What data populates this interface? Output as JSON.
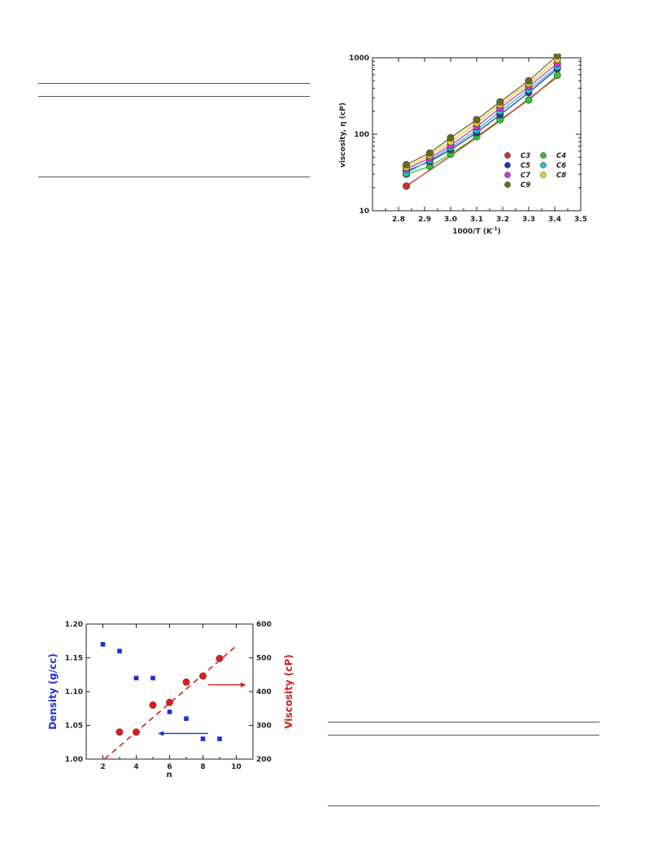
{
  "chart_data": [
    {
      "type": "scatter",
      "title": "",
      "xlabel_main": "1000/T (K",
      "xlabel_sup": "-1",
      "xlabel_end": ")",
      "ylabel": "viscosity, η (cP)",
      "xlim": [
        2.7,
        3.5
      ],
      "ylim": [
        10,
        1000
      ],
      "yscale": "log",
      "xticks": [
        "2.8",
        "2.9",
        "3.0",
        "3.1",
        "3.2",
        "3.3",
        "3.4",
        "3.5"
      ],
      "yticks": [
        "10",
        "100",
        "1000"
      ],
      "legend_position": "lower-right",
      "x": [
        2.83,
        2.92,
        3.0,
        3.1,
        3.19,
        3.3,
        3.41
      ],
      "series": [
        {
          "name": "C3",
          "color": "#d42a2a",
          "values": [
            21,
            null,
            null,
            null,
            null,
            null,
            null
          ]
        },
        {
          "name": "C4",
          "color": "#2ec42e",
          "values": [
            30,
            38,
            55,
            93,
            155,
            280,
            590
          ]
        },
        {
          "name": "C5",
          "color": "#2634b0",
          "values": [
            33,
            44,
            63,
            105,
            180,
            350,
            720
          ]
        },
        {
          "name": "C6",
          "color": "#22c4c4",
          "values": [
            31,
            46,
            67,
            113,
            200,
            380,
            760
          ]
        },
        {
          "name": "C7",
          "color": "#d633d6",
          "values": [
            35,
            49,
            72,
            125,
            220,
            420,
            840
          ]
        },
        {
          "name": "C8",
          "color": "#e6d21e",
          "values": [
            37,
            53,
            80,
            140,
            245,
            460,
            950
          ]
        },
        {
          "name": "C9",
          "color": "#6b6b1e",
          "values": [
            40,
            57,
            90,
            155,
            265,
            500,
            1070
          ]
        }
      ]
    },
    {
      "type": "scatter",
      "title": "",
      "xlabel": "n",
      "ylabel_left": "Density (g/cc)",
      "ylabel_right": "Viscosity (cP)",
      "xlim": [
        1,
        11
      ],
      "ylim_left": [
        1.0,
        1.2
      ],
      "ylim_right": [
        200,
        600
      ],
      "xticks": [
        "2",
        "4",
        "6",
        "8",
        "10"
      ],
      "yticks_left": [
        "1.00",
        "1.05",
        "1.10",
        "1.15",
        "1.20"
      ],
      "yticks_right": [
        "200",
        "300",
        "400",
        "500",
        "600"
      ],
      "density_color": "#1c2fd6",
      "viscosity_color": "#d42020",
      "density": {
        "x": [
          2,
          3,
          4,
          5,
          6,
          7,
          8,
          9
        ],
        "values": [
          1.17,
          1.16,
          1.12,
          1.12,
          1.07,
          1.06,
          1.03,
          1.03
        ]
      },
      "viscosity": {
        "x": [
          3,
          4,
          5,
          6,
          7,
          8,
          9
        ],
        "values": [
          280,
          280,
          360,
          368,
          428,
          446,
          498
        ]
      },
      "fit_line": {
        "x": [
          2.1,
          10.0
        ],
        "values": [
          200,
          535
        ]
      }
    }
  ]
}
